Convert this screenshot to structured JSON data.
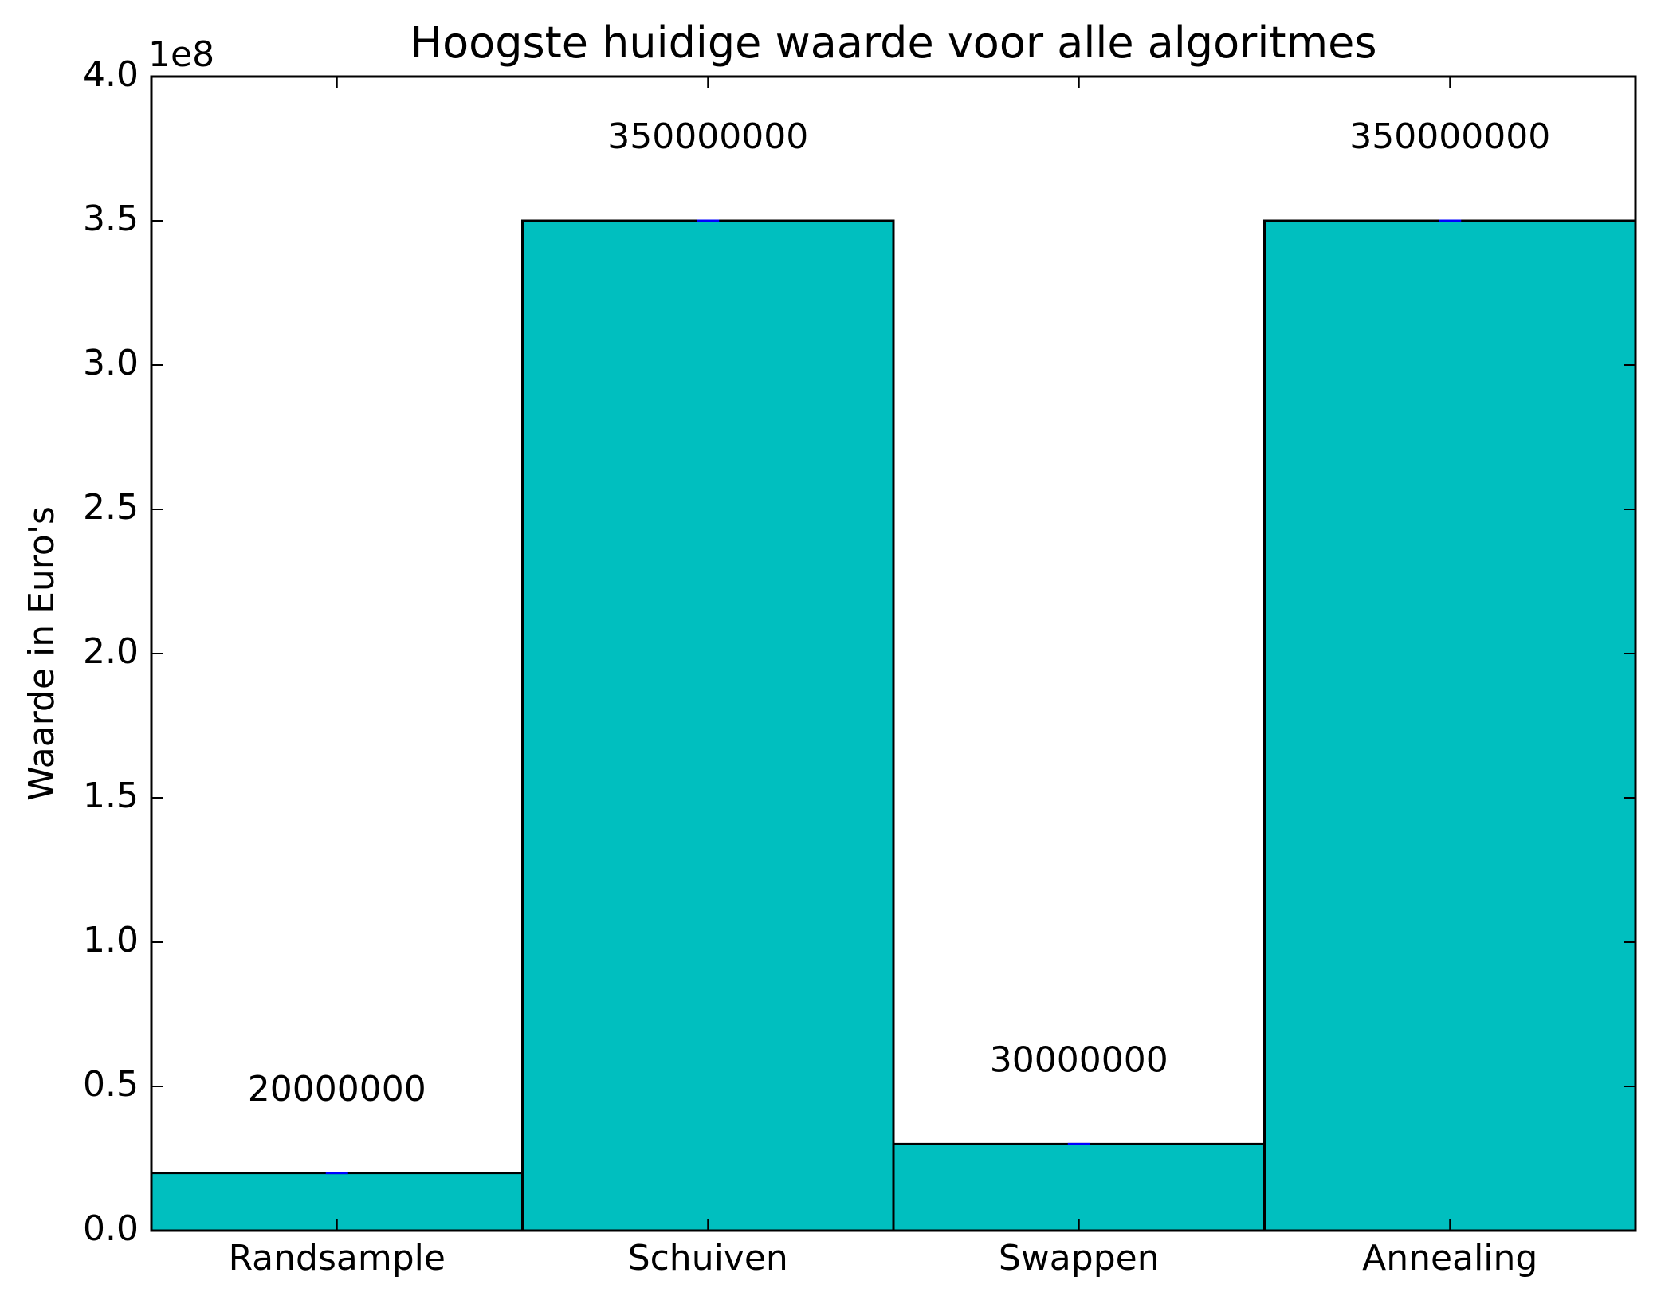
{
  "chart_data": {
    "type": "bar",
    "title": "Hoogste huidige waarde voor alle algoritmes",
    "ylabel": "Waarde in Euro's",
    "xlabel": "",
    "offset_label": "1e8",
    "ylim": [
      0,
      400000000
    ],
    "yticks": [
      0,
      50000000,
      100000000,
      150000000,
      200000000,
      250000000,
      300000000,
      350000000,
      400000000
    ],
    "ytick_labels": [
      "0.0",
      "0.5",
      "1.0",
      "1.5",
      "2.0",
      "2.5",
      "3.0",
      "3.5",
      "4.0"
    ],
    "categories": [
      "Randsample",
      "Schuiven",
      "Swappen",
      "Annealing"
    ],
    "values": [
      20000000,
      350000000,
      30000000,
      350000000
    ],
    "data_labels": [
      "20000000",
      "350000000",
      "30000000",
      "350000000"
    ],
    "bar_color": "#00bfbf",
    "error_color": "#0000ff",
    "grid": false,
    "legend": "none"
  }
}
